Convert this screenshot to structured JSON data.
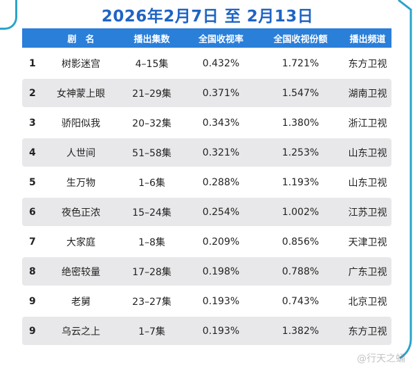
{
  "title": "2026年2月7日 至 2月13日",
  "header": {
    "name": "剧　名",
    "episodes": "播出集数",
    "rating": "全国收视率",
    "share": "全国收视份额",
    "channel": "播出频道"
  },
  "rows": [
    {
      "rank": "1",
      "name": "树影迷宫",
      "episodes": "4–15集",
      "rating": "0.432%",
      "share": "1.721%",
      "channel": "东方卫视"
    },
    {
      "rank": "2",
      "name": "女神蒙上眼",
      "episodes": "21–29集",
      "rating": "0.371%",
      "share": "1.547%",
      "channel": "湖南卫视"
    },
    {
      "rank": "3",
      "name": "骄阳似我",
      "episodes": "20–32集",
      "rating": "0.343%",
      "share": "1.380%",
      "channel": "浙江卫视"
    },
    {
      "rank": "4",
      "name": "人世间",
      "episodes": "51–58集",
      "rating": "0.321%",
      "share": "1.253%",
      "channel": "山东卫视"
    },
    {
      "rank": "5",
      "name": "生万物",
      "episodes": "1–6集",
      "rating": "0.288%",
      "share": "1.193%",
      "channel": "山东卫视"
    },
    {
      "rank": "6",
      "name": "夜色正浓",
      "episodes": "15–24集",
      "rating": "0.254%",
      "share": "1.002%",
      "channel": "江苏卫视"
    },
    {
      "rank": "7",
      "name": "大家庭",
      "episodes": "1–8集",
      "rating": "0.209%",
      "share": "0.856%",
      "channel": "天津卫视"
    },
    {
      "rank": "8",
      "name": "绝密较量",
      "episodes": "17–28集",
      "rating": "0.198%",
      "share": "0.788%",
      "channel": "广东卫视"
    },
    {
      "rank": "9",
      "name": "老舅",
      "episodes": "23–27集",
      "rating": "0.193%",
      "share": "0.743%",
      "channel": "北京卫视"
    },
    {
      "rank": "9",
      "name": "乌云之上",
      "episodes": "1–7集",
      "rating": "0.193%",
      "share": "1.382%",
      "channel": "东方卫视"
    }
  ],
  "watermark": "@行天之蛹",
  "colors": {
    "title": "#1f64c4",
    "header_bg": "#2a7fd9",
    "frame": "#2aa3c9",
    "alt_row": "#e8e8ea"
  }
}
